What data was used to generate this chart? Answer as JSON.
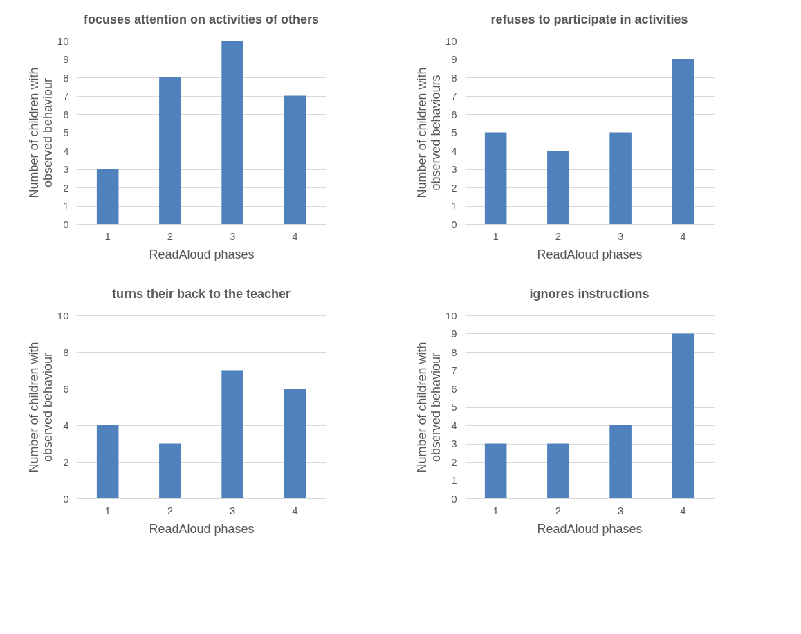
{
  "chart_data": [
    {
      "type": "bar",
      "title": "focuses attention on activities of others",
      "xlabel": "ReadAloud phases",
      "ylabel": "Number of children with observed behaviour",
      "categories": [
        "1",
        "2",
        "3",
        "4"
      ],
      "values": [
        3,
        8,
        10,
        7
      ],
      "color": "#4f81bd",
      "ylim": [
        0,
        10
      ],
      "yticks": [
        0,
        1,
        2,
        3,
        4,
        5,
        6,
        7,
        8,
        9,
        10
      ],
      "grid": "y"
    },
    {
      "type": "bar",
      "title": "refuses to participate in activities",
      "xlabel": "ReadAloud phases",
      "ylabel": "Number of children with observed behaviours",
      "categories": [
        "1",
        "2",
        "3",
        "4"
      ],
      "values": [
        5,
        4,
        5,
        9
      ],
      "color": "#4f81bd",
      "ylim": [
        0,
        10
      ],
      "yticks": [
        0,
        1,
        2,
        3,
        4,
        5,
        6,
        7,
        8,
        9,
        10
      ],
      "grid": "y"
    },
    {
      "type": "bar",
      "title": "turns their back to the teacher",
      "xlabel": "ReadAloud phases",
      "ylabel": "Number of children with observed behaviour",
      "categories": [
        "1",
        "2",
        "3",
        "4"
      ],
      "values": [
        4,
        3,
        7,
        6
      ],
      "color": "#4f81bd",
      "ylim": [
        0,
        10
      ],
      "yticks": [
        0,
        2,
        4,
        6,
        8,
        10
      ],
      "grid": "y"
    },
    {
      "type": "bar",
      "title": "ignores instructions",
      "xlabel": "ReadAloud phases",
      "ylabel": "Number of children with observed behaviour",
      "categories": [
        "1",
        "2",
        "3",
        "4"
      ],
      "values": [
        3,
        3,
        4,
        9
      ],
      "color": "#4f81bd",
      "ylim": [
        0,
        10
      ],
      "yticks": [
        0,
        1,
        2,
        3,
        4,
        5,
        6,
        7,
        8,
        9,
        10
      ],
      "grid": "y"
    }
  ]
}
